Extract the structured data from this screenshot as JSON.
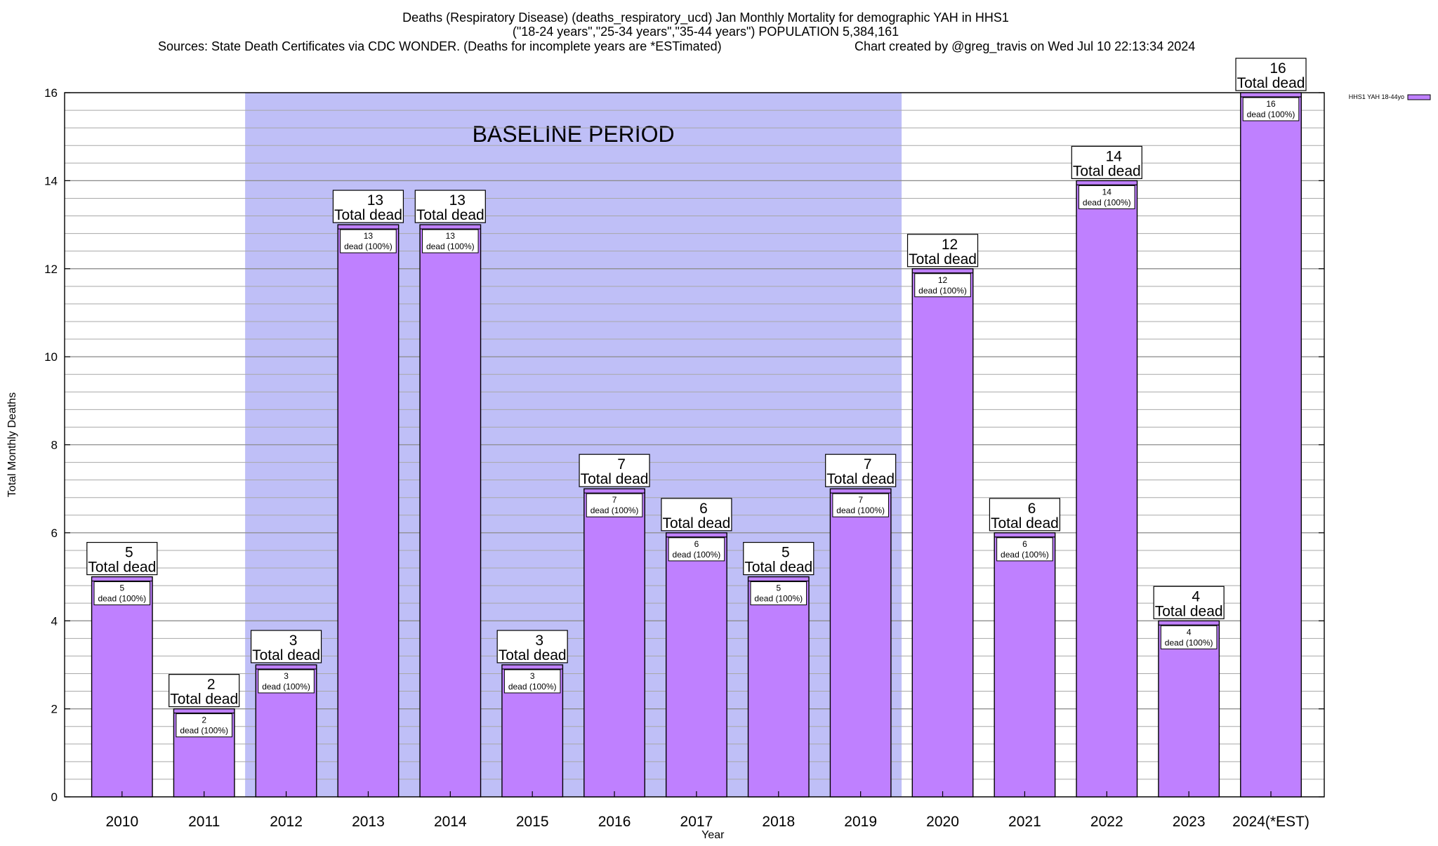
{
  "header": {
    "title_line1": "Deaths (Respiratory Disease) (deaths_respiratory_ucd) Jan Monthly Mortality for demographic YAH in HHS1",
    "title_line2": "(\"18-24 years\",\"25-34 years\",\"35-44 years\") POPULATION 5,384,161",
    "sources": "Sources: State Death Certificates via CDC WONDER. (Deaths for incomplete years are *ESTimated)",
    "credit": "Chart created by @greg_travis on Wed Jul 10 22:13:34 2024"
  },
  "chart_data": {
    "type": "bar",
    "title": "Deaths (Respiratory Disease) (deaths_respiratory_ucd) Jan Monthly Mortality for demographic YAH in HHS1",
    "xlabel": "Year",
    "ylabel": "Total Monthly Deaths",
    "ylim": [
      0,
      16
    ],
    "y_ticks": [
      0,
      2,
      4,
      6,
      8,
      10,
      12,
      14,
      16
    ],
    "y_minor_step": 0.4,
    "grid": true,
    "legend_position": "top-right",
    "categories": [
      "2010",
      "2011",
      "2012",
      "2013",
      "2014",
      "2015",
      "2016",
      "2017",
      "2018",
      "2019",
      "2020",
      "2021",
      "2022",
      "2023",
      "2024(*EST)"
    ],
    "series": [
      {
        "name": "HHS1 YAH 18-44yo",
        "color": "#bf80ff",
        "values": [
          5,
          2,
          3,
          13,
          13,
          3,
          7,
          6,
          5,
          7,
          12,
          6,
          14,
          4,
          16
        ]
      }
    ],
    "total_label_suffix": "Total dead",
    "inner_label_suffix": "dead (100%)",
    "baseline": {
      "label": "BASELINE PERIOD",
      "from_category": "2012",
      "to_category": "2019",
      "color": "#bfbff7"
    }
  }
}
